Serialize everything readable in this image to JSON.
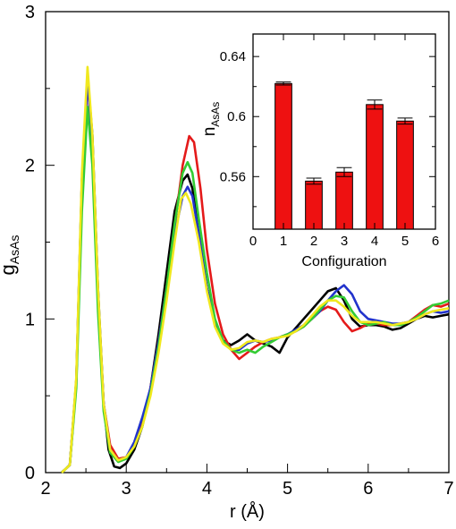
{
  "chart_data": [
    {
      "type": "line",
      "xlabel": "r (Å)",
      "ylabel": "g",
      "ylabel_sub": "AsAs",
      "xlim": [
        2,
        7
      ],
      "ylim": [
        0,
        3
      ],
      "xticks": [
        "2",
        "3",
        "4",
        "5",
        "6",
        "7"
      ],
      "yticks": [
        "0",
        "1",
        "2",
        "3"
      ],
      "legend": "none",
      "grid": false,
      "series": [
        {
          "color": "#000000",
          "points": [
            [
              2.2,
              0
            ],
            [
              2.3,
              0.05
            ],
            [
              2.38,
              0.6
            ],
            [
              2.45,
              1.9
            ],
            [
              2.52,
              2.58
            ],
            [
              2.58,
              2.2
            ],
            [
              2.65,
              1.2
            ],
            [
              2.72,
              0.45
            ],
            [
              2.78,
              0.15
            ],
            [
              2.85,
              0.04
            ],
            [
              2.92,
              0.03
            ],
            [
              3.0,
              0.06
            ],
            [
              3.1,
              0.15
            ],
            [
              3.2,
              0.3
            ],
            [
              3.3,
              0.55
            ],
            [
              3.4,
              0.9
            ],
            [
              3.5,
              1.3
            ],
            [
              3.6,
              1.7
            ],
            [
              3.7,
              1.9
            ],
            [
              3.76,
              1.94
            ],
            [
              3.82,
              1.85
            ],
            [
              3.9,
              1.55
            ],
            [
              4.0,
              1.2
            ],
            [
              4.1,
              0.98
            ],
            [
              4.2,
              0.86
            ],
            [
              4.3,
              0.83
            ],
            [
              4.4,
              0.86
            ],
            [
              4.5,
              0.9
            ],
            [
              4.6,
              0.86
            ],
            [
              4.7,
              0.84
            ],
            [
              4.8,
              0.82
            ],
            [
              4.9,
              0.78
            ],
            [
              5.0,
              0.88
            ],
            [
              5.1,
              0.94
            ],
            [
              5.2,
              1.0
            ],
            [
              5.3,
              1.06
            ],
            [
              5.4,
              1.12
            ],
            [
              5.5,
              1.18
            ],
            [
              5.6,
              1.2
            ],
            [
              5.7,
              1.12
            ],
            [
              5.8,
              1.0
            ],
            [
              5.9,
              0.95
            ],
            [
              6.0,
              0.96
            ],
            [
              6.1,
              0.96
            ],
            [
              6.2,
              0.95
            ],
            [
              6.3,
              0.93
            ],
            [
              6.4,
              0.94
            ],
            [
              6.5,
              0.97
            ],
            [
              6.6,
              1.0
            ],
            [
              6.7,
              1.02
            ],
            [
              6.8,
              1.01
            ],
            [
              6.9,
              1.02
            ],
            [
              7.0,
              1.03
            ]
          ]
        },
        {
          "color": "#e41a1a",
          "points": [
            [
              2.2,
              0
            ],
            [
              2.3,
              0.05
            ],
            [
              2.38,
              0.58
            ],
            [
              2.45,
              1.85
            ],
            [
              2.52,
              2.55
            ],
            [
              2.58,
              2.15
            ],
            [
              2.65,
              1.15
            ],
            [
              2.72,
              0.45
            ],
            [
              2.8,
              0.18
            ],
            [
              2.9,
              0.09
            ],
            [
              3.0,
              0.1
            ],
            [
              3.1,
              0.18
            ],
            [
              3.2,
              0.32
            ],
            [
              3.3,
              0.55
            ],
            [
              3.4,
              0.85
            ],
            [
              3.5,
              1.2
            ],
            [
              3.6,
              1.6
            ],
            [
              3.7,
              2.0
            ],
            [
              3.78,
              2.19
            ],
            [
              3.84,
              2.15
            ],
            [
              3.92,
              1.85
            ],
            [
              4.0,
              1.45
            ],
            [
              4.1,
              1.1
            ],
            [
              4.2,
              0.9
            ],
            [
              4.3,
              0.8
            ],
            [
              4.4,
              0.74
            ],
            [
              4.5,
              0.78
            ],
            [
              4.6,
              0.82
            ],
            [
              4.7,
              0.85
            ],
            [
              4.8,
              0.87
            ],
            [
              4.9,
              0.88
            ],
            [
              5.0,
              0.9
            ],
            [
              5.1,
              0.92
            ],
            [
              5.2,
              0.95
            ],
            [
              5.3,
              1.0
            ],
            [
              5.4,
              1.05
            ],
            [
              5.5,
              1.08
            ],
            [
              5.6,
              1.06
            ],
            [
              5.7,
              0.98
            ],
            [
              5.8,
              0.92
            ],
            [
              5.9,
              0.94
            ],
            [
              6.0,
              0.97
            ],
            [
              6.1,
              0.97
            ],
            [
              6.2,
              0.96
            ],
            [
              6.3,
              0.96
            ],
            [
              6.4,
              0.97
            ],
            [
              6.5,
              0.98
            ],
            [
              6.6,
              1.02
            ],
            [
              6.7,
              1.06
            ],
            [
              6.8,
              1.09
            ],
            [
              6.9,
              1.08
            ],
            [
              7.0,
              1.1
            ]
          ]
        },
        {
          "color": "#2233cc",
          "points": [
            [
              2.2,
              0
            ],
            [
              2.3,
              0.05
            ],
            [
              2.38,
              0.6
            ],
            [
              2.45,
              1.9
            ],
            [
              2.52,
              2.55
            ],
            [
              2.58,
              2.15
            ],
            [
              2.65,
              1.15
            ],
            [
              2.72,
              0.45
            ],
            [
              2.8,
              0.15
            ],
            [
              2.9,
              0.08
            ],
            [
              3.0,
              0.1
            ],
            [
              3.1,
              0.2
            ],
            [
              3.2,
              0.36
            ],
            [
              3.3,
              0.55
            ],
            [
              3.4,
              0.85
            ],
            [
              3.5,
              1.2
            ],
            [
              3.6,
              1.55
            ],
            [
              3.7,
              1.8
            ],
            [
              3.76,
              1.86
            ],
            [
              3.82,
              1.8
            ],
            [
              3.9,
              1.55
            ],
            [
              4.0,
              1.2
            ],
            [
              4.1,
              0.96
            ],
            [
              4.2,
              0.85
            ],
            [
              4.3,
              0.8
            ],
            [
              4.4,
              0.8
            ],
            [
              4.5,
              0.84
            ],
            [
              4.6,
              0.86
            ],
            [
              4.7,
              0.85
            ],
            [
              4.8,
              0.86
            ],
            [
              4.9,
              0.88
            ],
            [
              5.0,
              0.9
            ],
            [
              5.1,
              0.93
            ],
            [
              5.2,
              0.96
            ],
            [
              5.3,
              1.0
            ],
            [
              5.4,
              1.05
            ],
            [
              5.5,
              1.12
            ],
            [
              5.6,
              1.18
            ],
            [
              5.7,
              1.22
            ],
            [
              5.8,
              1.16
            ],
            [
              5.9,
              1.05
            ],
            [
              6.0,
              1.0
            ],
            [
              6.1,
              0.99
            ],
            [
              6.2,
              0.98
            ],
            [
              6.3,
              0.97
            ],
            [
              6.4,
              0.97
            ],
            [
              6.5,
              0.98
            ],
            [
              6.6,
              1.0
            ],
            [
              6.7,
              1.03
            ],
            [
              6.8,
              1.05
            ],
            [
              6.9,
              1.04
            ],
            [
              7.0,
              1.05
            ]
          ]
        },
        {
          "color": "#33cc33",
          "points": [
            [
              2.2,
              0
            ],
            [
              2.3,
              0.05
            ],
            [
              2.38,
              0.55
            ],
            [
              2.45,
              1.7
            ],
            [
              2.52,
              2.38
            ],
            [
              2.58,
              2.0
            ],
            [
              2.65,
              1.05
            ],
            [
              2.72,
              0.4
            ],
            [
              2.8,
              0.13
            ],
            [
              2.9,
              0.07
            ],
            [
              3.0,
              0.09
            ],
            [
              3.1,
              0.17
            ],
            [
              3.2,
              0.3
            ],
            [
              3.3,
              0.52
            ],
            [
              3.4,
              0.82
            ],
            [
              3.5,
              1.2
            ],
            [
              3.6,
              1.62
            ],
            [
              3.7,
              1.95
            ],
            [
              3.76,
              2.02
            ],
            [
              3.82,
              1.95
            ],
            [
              3.9,
              1.65
            ],
            [
              4.0,
              1.3
            ],
            [
              4.1,
              1.0
            ],
            [
              4.2,
              0.86
            ],
            [
              4.3,
              0.8
            ],
            [
              4.4,
              0.78
            ],
            [
              4.5,
              0.8
            ],
            [
              4.6,
              0.78
            ],
            [
              4.7,
              0.82
            ],
            [
              4.8,
              0.85
            ],
            [
              4.9,
              0.88
            ],
            [
              5.0,
              0.9
            ],
            [
              5.1,
              0.92
            ],
            [
              5.2,
              0.95
            ],
            [
              5.3,
              1.0
            ],
            [
              5.4,
              1.06
            ],
            [
              5.5,
              1.12
            ],
            [
              5.6,
              1.15
            ],
            [
              5.7,
              1.14
            ],
            [
              5.8,
              1.05
            ],
            [
              5.9,
              0.98
            ],
            [
              6.0,
              0.96
            ],
            [
              6.1,
              0.97
            ],
            [
              6.2,
              0.98
            ],
            [
              6.3,
              0.96
            ],
            [
              6.4,
              0.96
            ],
            [
              6.5,
              0.98
            ],
            [
              6.6,
              1.01
            ],
            [
              6.7,
              1.05
            ],
            [
              6.8,
              1.09
            ],
            [
              6.9,
              1.1
            ],
            [
              7.0,
              1.12
            ]
          ]
        },
        {
          "color": "#f0e81e",
          "points": [
            [
              2.2,
              0
            ],
            [
              2.3,
              0.05
            ],
            [
              2.38,
              0.62
            ],
            [
              2.45,
              1.95
            ],
            [
              2.52,
              2.64
            ],
            [
              2.58,
              2.2
            ],
            [
              2.65,
              1.2
            ],
            [
              2.72,
              0.45
            ],
            [
              2.8,
              0.15
            ],
            [
              2.9,
              0.08
            ],
            [
              3.0,
              0.1
            ],
            [
              3.1,
              0.17
            ],
            [
              3.2,
              0.3
            ],
            [
              3.3,
              0.5
            ],
            [
              3.4,
              0.78
            ],
            [
              3.5,
              1.12
            ],
            [
              3.6,
              1.5
            ],
            [
              3.68,
              1.78
            ],
            [
              3.74,
              1.82
            ],
            [
              3.8,
              1.75
            ],
            [
              3.9,
              1.5
            ],
            [
              4.0,
              1.18
            ],
            [
              4.1,
              0.95
            ],
            [
              4.2,
              0.84
            ],
            [
              4.3,
              0.8
            ],
            [
              4.4,
              0.81
            ],
            [
              4.5,
              0.85
            ],
            [
              4.6,
              0.86
            ],
            [
              4.7,
              0.85
            ],
            [
              4.8,
              0.87
            ],
            [
              4.9,
              0.88
            ],
            [
              5.0,
              0.89
            ],
            [
              5.1,
              0.92
            ],
            [
              5.2,
              0.96
            ],
            [
              5.3,
              1.02
            ],
            [
              5.4,
              1.08
            ],
            [
              5.5,
              1.12
            ],
            [
              5.6,
              1.12
            ],
            [
              5.7,
              1.08
            ],
            [
              5.8,
              1.02
            ],
            [
              5.9,
              0.98
            ],
            [
              6.0,
              0.98
            ],
            [
              6.1,
              0.98
            ],
            [
              6.2,
              0.97
            ],
            [
              6.3,
              0.96
            ],
            [
              6.4,
              0.97
            ],
            [
              6.5,
              0.98
            ],
            [
              6.6,
              1.0
            ],
            [
              6.7,
              1.03
            ],
            [
              6.8,
              1.05
            ],
            [
              6.9,
              1.06
            ],
            [
              7.0,
              1.07
            ]
          ]
        }
      ]
    },
    {
      "type": "bar",
      "xlabel": "Configuration",
      "ylabel": "n",
      "ylabel_sub": "AsAs",
      "xlim": [
        0,
        6
      ],
      "ylim": [
        0.525,
        0.655
      ],
      "xticks": [
        "0",
        "1",
        "2",
        "3",
        "4",
        "5",
        "6"
      ],
      "yticks": [
        "0.56",
        "0.6",
        "0.64"
      ],
      "legend": "none",
      "grid": false,
      "bar_color": "#ee1111",
      "categories": [
        1,
        2,
        3,
        4,
        5
      ],
      "values": [
        0.622,
        0.557,
        0.563,
        0.608,
        0.597
      ],
      "errors": [
        0.001,
        0.002,
        0.003,
        0.003,
        0.002
      ]
    }
  ]
}
